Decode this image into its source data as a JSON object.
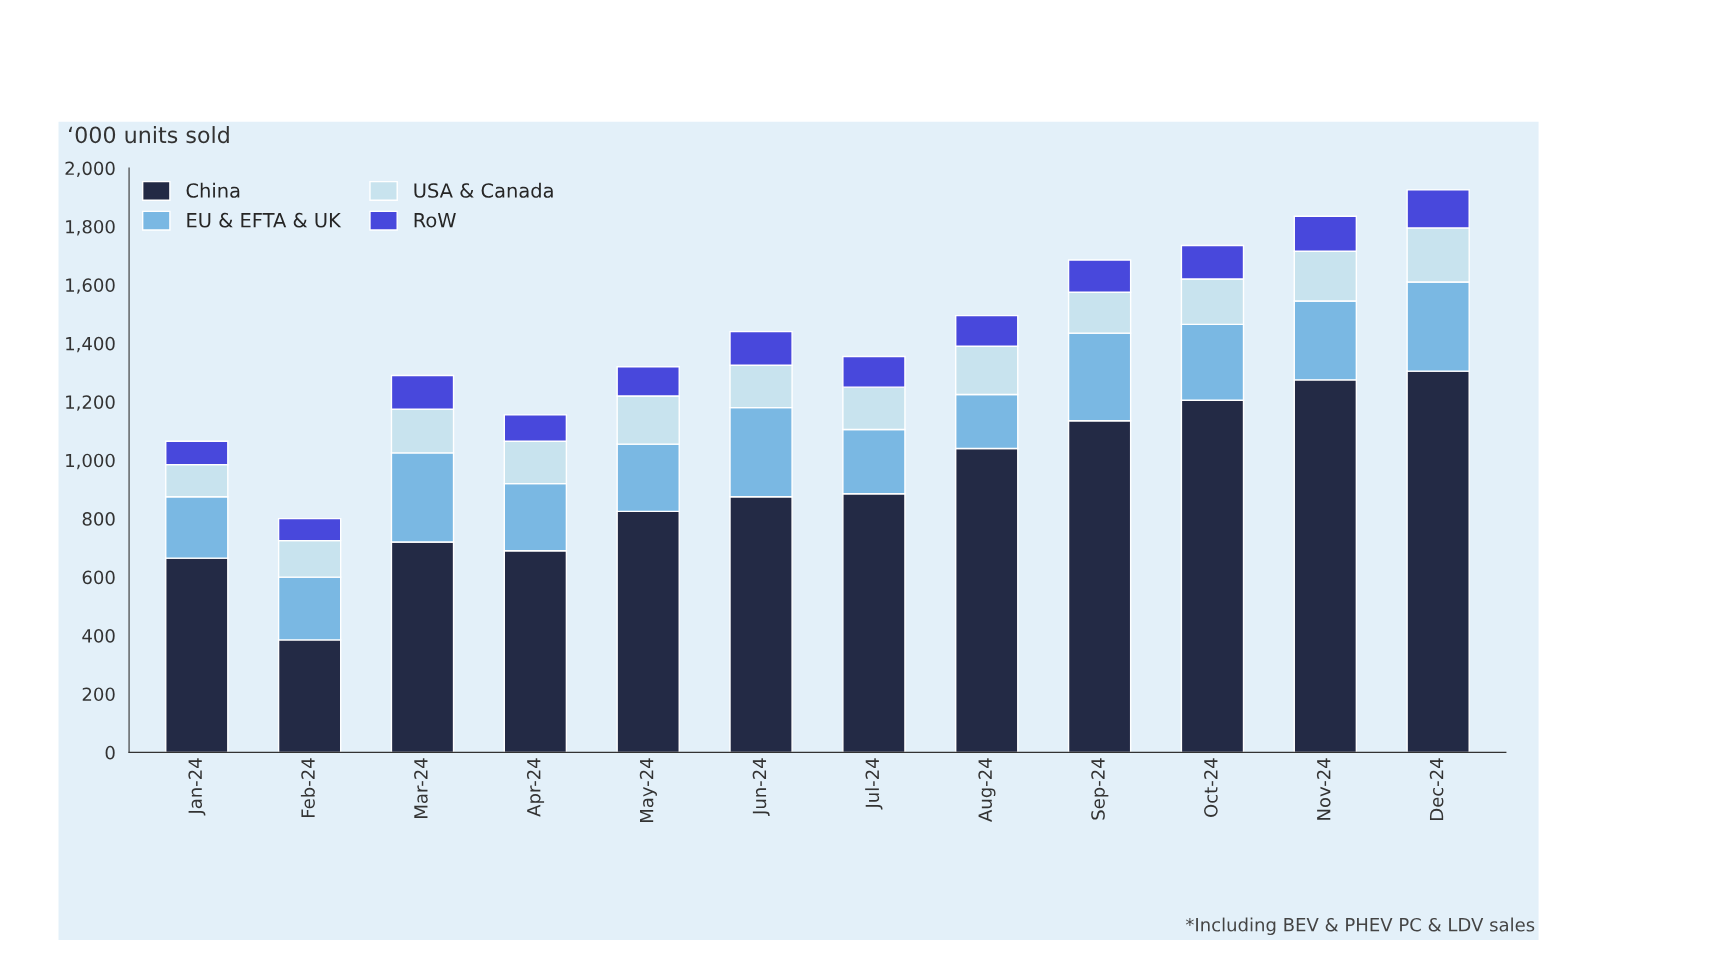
{
  "chart_data": {
    "type": "bar",
    "stacked": true,
    "ylabel": "‘000 units sold",
    "categories": [
      "Jan-24",
      "Feb-24",
      "Mar-24",
      "Apr-24",
      "May-24",
      "Jun-24",
      "Jul-24",
      "Aug-24",
      "Sep-24",
      "Oct-24",
      "Nov-24",
      "Dec-24"
    ],
    "series": [
      {
        "name": "China",
        "color": "#232a45",
        "values": [
          665,
          385,
          720,
          690,
          825,
          875,
          885,
          1040,
          1135,
          1205,
          1275,
          1305
        ]
      },
      {
        "name": "EU & EFTA & UK",
        "color": "#7ab8e3",
        "values": [
          210,
          215,
          305,
          230,
          230,
          305,
          220,
          185,
          300,
          260,
          270,
          305
        ]
      },
      {
        "name": "USA & Canada",
        "color": "#c8e3ee",
        "values": [
          110,
          125,
          150,
          145,
          165,
          145,
          145,
          165,
          140,
          155,
          170,
          185
        ]
      },
      {
        "name": "RoW",
        "color": "#4848dc",
        "values": [
          80,
          75,
          115,
          90,
          100,
          115,
          105,
          105,
          110,
          115,
          120,
          130
        ]
      }
    ],
    "ylim": [
      0,
      2000
    ],
    "yticks": [
      0,
      200,
      400,
      600,
      800,
      {
        "value": 1000,
        "label": "1,000"
      },
      {
        "value": 1200,
        "label": "1,200"
      },
      {
        "value": 1400,
        "label": "1,400"
      },
      {
        "value": 1600,
        "label": "1,600"
      },
      {
        "value": 1800,
        "label": "1,800"
      },
      {
        "value": 2000,
        "label": "2,000"
      }
    ],
    "grid": false,
    "legend": "top left",
    "annotations": [
      "*Including BEV & PHEV PC & LDV sales"
    ]
  }
}
